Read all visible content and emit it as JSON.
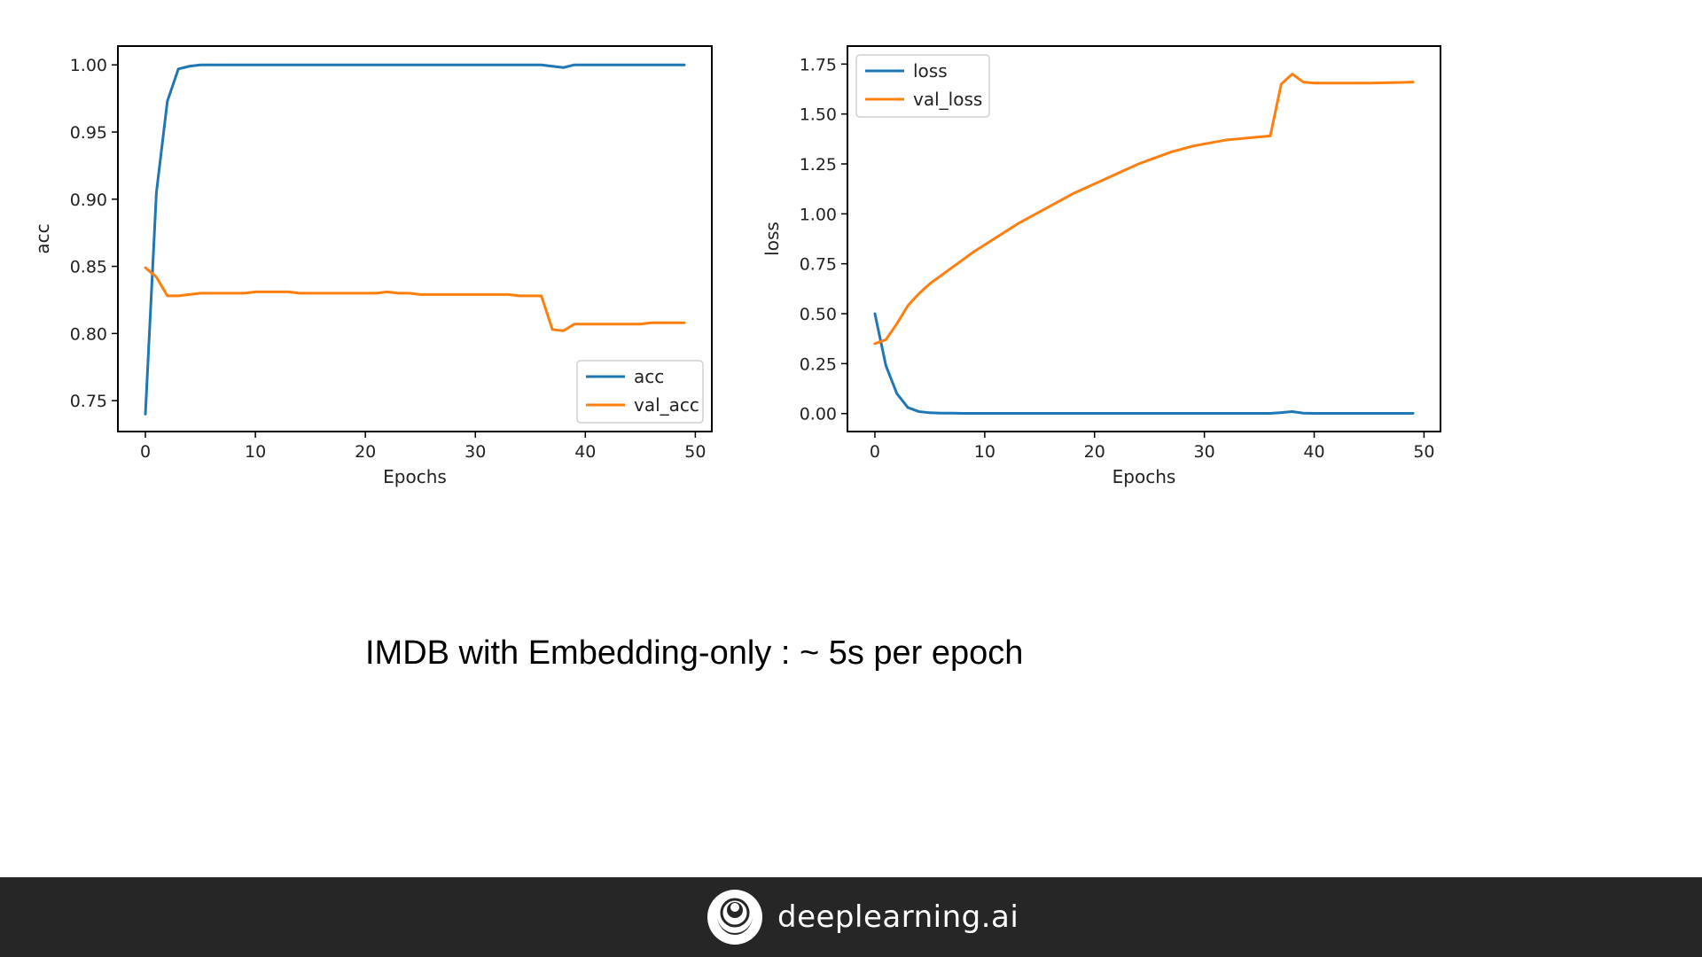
{
  "slide": {
    "caption": "IMDB with Embedding-only : ~ 5s per epoch",
    "brand": "deeplearning.ai",
    "footer_color": "#262626"
  },
  "colors": {
    "blue": "#1f77b4",
    "orange": "#ff7f0e",
    "axis": "#000000"
  },
  "chart_data": [
    {
      "type": "line",
      "xlabel": "Epochs",
      "ylabel": "acc",
      "xlim": [
        -2.5,
        51.5
      ],
      "ylim": [
        0.727,
        1.014
      ],
      "xticks": [
        0,
        10,
        20,
        30,
        40,
        50
      ],
      "yticks": [
        0.75,
        0.8,
        0.85,
        0.9,
        0.95,
        1.0
      ],
      "ytick_labels": [
        "0.75",
        "0.80",
        "0.85",
        "0.90",
        "0.95",
        "1.00"
      ],
      "grid": false,
      "legend_position": "lower right",
      "series": [
        {
          "name": "acc",
          "color": "#1f77b4",
          "x": [
            0,
            1,
            2,
            3,
            4,
            5,
            6,
            7,
            8,
            9,
            10,
            11,
            12,
            13,
            14,
            15,
            16,
            17,
            18,
            19,
            20,
            21,
            22,
            23,
            24,
            25,
            26,
            27,
            28,
            29,
            30,
            31,
            32,
            33,
            34,
            35,
            36,
            37,
            38,
            39,
            40,
            41,
            42,
            43,
            44,
            45,
            46,
            47,
            48,
            49
          ],
          "values": [
            0.74,
            0.905,
            0.973,
            0.997,
            0.999,
            1.0,
            1.0,
            1.0,
            1.0,
            1.0,
            1.0,
            1.0,
            1.0,
            1.0,
            1.0,
            1.0,
            1.0,
            1.0,
            1.0,
            1.0,
            1.0,
            1.0,
            1.0,
            1.0,
            1.0,
            1.0,
            1.0,
            1.0,
            1.0,
            1.0,
            1.0,
            1.0,
            1.0,
            1.0,
            1.0,
            1.0,
            1.0,
            0.999,
            0.998,
            1.0,
            1.0,
            1.0,
            1.0,
            1.0,
            1.0,
            1.0,
            1.0,
            1.0,
            1.0,
            1.0
          ]
        },
        {
          "name": "val_acc",
          "color": "#ff7f0e",
          "x": [
            0,
            1,
            2,
            3,
            4,
            5,
            6,
            7,
            8,
            9,
            10,
            11,
            12,
            13,
            14,
            15,
            16,
            17,
            18,
            19,
            20,
            21,
            22,
            23,
            24,
            25,
            26,
            27,
            28,
            29,
            30,
            31,
            32,
            33,
            34,
            35,
            36,
            37,
            38,
            39,
            40,
            41,
            42,
            43,
            44,
            45,
            46,
            47,
            48,
            49
          ],
          "values": [
            0.849,
            0.842,
            0.828,
            0.828,
            0.829,
            0.83,
            0.83,
            0.83,
            0.83,
            0.83,
            0.831,
            0.831,
            0.831,
            0.831,
            0.83,
            0.83,
            0.83,
            0.83,
            0.83,
            0.83,
            0.83,
            0.83,
            0.831,
            0.83,
            0.83,
            0.829,
            0.829,
            0.829,
            0.829,
            0.829,
            0.829,
            0.829,
            0.829,
            0.829,
            0.828,
            0.828,
            0.828,
            0.803,
            0.802,
            0.807,
            0.807,
            0.807,
            0.807,
            0.807,
            0.807,
            0.807,
            0.808,
            0.808,
            0.808,
            0.808
          ]
        }
      ]
    },
    {
      "type": "line",
      "xlabel": "Epochs",
      "ylabel": "loss",
      "xlim": [
        -2.5,
        51.5
      ],
      "ylim": [
        -0.09,
        1.84
      ],
      "xticks": [
        0,
        10,
        20,
        30,
        40,
        50
      ],
      "yticks": [
        0.0,
        0.25,
        0.5,
        0.75,
        1.0,
        1.25,
        1.5,
        1.75
      ],
      "ytick_labels": [
        "0.00",
        "0.25",
        "0.50",
        "0.75",
        "1.00",
        "1.25",
        "1.50",
        "1.75"
      ],
      "grid": false,
      "legend_position": "upper left",
      "series": [
        {
          "name": "loss",
          "color": "#1f77b4",
          "x": [
            0,
            1,
            2,
            3,
            4,
            5,
            6,
            7,
            8,
            9,
            10,
            11,
            12,
            13,
            14,
            15,
            16,
            17,
            18,
            19,
            20,
            21,
            22,
            23,
            24,
            25,
            26,
            27,
            28,
            29,
            30,
            31,
            32,
            33,
            34,
            35,
            36,
            37,
            38,
            39,
            40,
            41,
            42,
            43,
            44,
            45,
            46,
            47,
            48,
            49
          ],
          "values": [
            0.5,
            0.24,
            0.1,
            0.03,
            0.01,
            0.004,
            0.002,
            0.002,
            0.001,
            0.001,
            0.001,
            0.001,
            0.001,
            0.001,
            0.001,
            0.001,
            0.001,
            0.001,
            0.001,
            0.001,
            0.001,
            0.001,
            0.001,
            0.001,
            0.001,
            0.001,
            0.001,
            0.001,
            0.001,
            0.001,
            0.001,
            0.001,
            0.001,
            0.001,
            0.001,
            0.001,
            0.001,
            0.005,
            0.01,
            0.002,
            0.001,
            0.001,
            0.001,
            0.001,
            0.001,
            0.001,
            0.001,
            0.001,
            0.001,
            0.001
          ]
        },
        {
          "name": "val_loss",
          "color": "#ff7f0e",
          "x": [
            0,
            1,
            2,
            3,
            4,
            5,
            6,
            7,
            8,
            9,
            10,
            11,
            12,
            13,
            14,
            15,
            16,
            17,
            18,
            19,
            20,
            21,
            22,
            23,
            24,
            25,
            26,
            27,
            28,
            29,
            30,
            31,
            32,
            33,
            34,
            35,
            36,
            37,
            38,
            39,
            40,
            41,
            42,
            43,
            44,
            45,
            46,
            47,
            48,
            49
          ],
          "values": [
            0.35,
            0.37,
            0.45,
            0.54,
            0.6,
            0.65,
            0.69,
            0.73,
            0.77,
            0.81,
            0.845,
            0.88,
            0.915,
            0.95,
            0.98,
            1.01,
            1.04,
            1.07,
            1.1,
            1.125,
            1.15,
            1.175,
            1.2,
            1.225,
            1.25,
            1.27,
            1.29,
            1.31,
            1.325,
            1.34,
            1.35,
            1.36,
            1.37,
            1.375,
            1.38,
            1.385,
            1.39,
            1.65,
            1.7,
            1.66,
            1.655,
            1.655,
            1.655,
            1.655,
            1.655,
            1.655,
            1.656,
            1.657,
            1.658,
            1.66
          ]
        }
      ]
    }
  ]
}
